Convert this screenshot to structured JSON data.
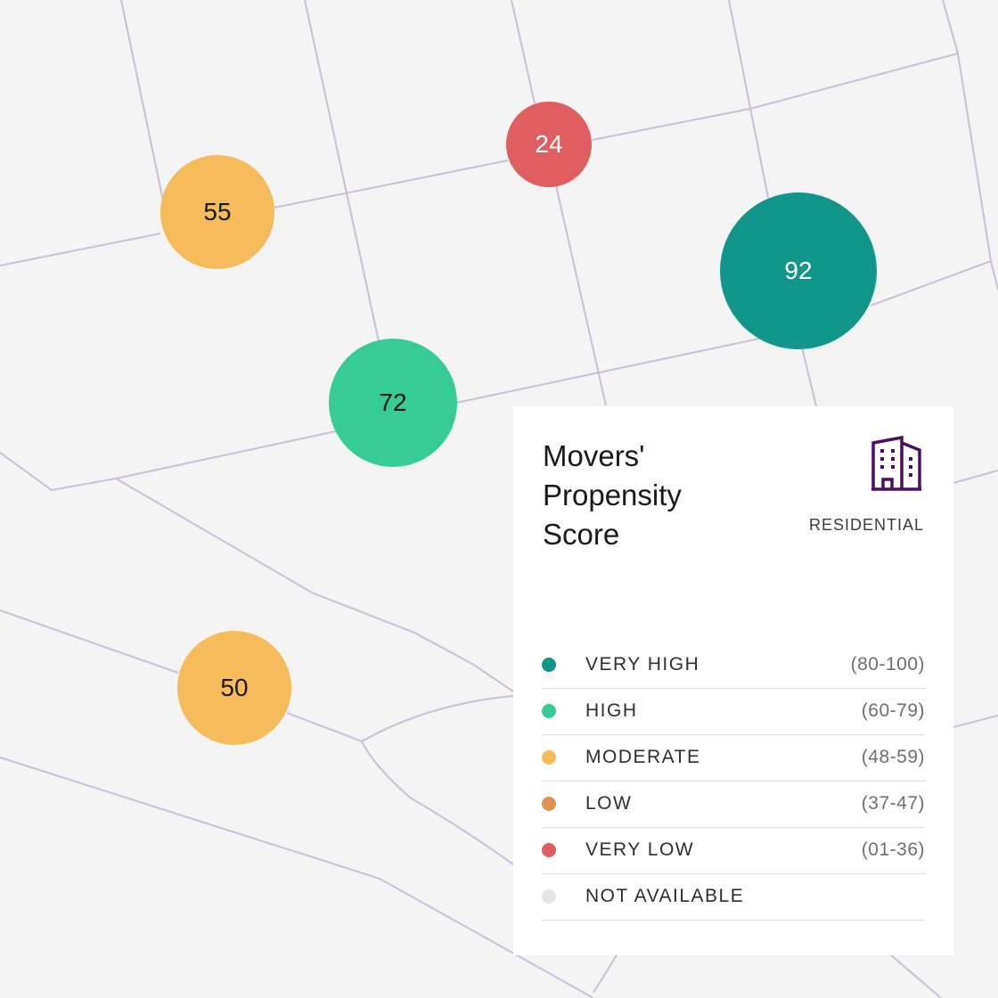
{
  "map": {
    "background": "#f4f4f5",
    "road_color": "#cbbfd6",
    "markers": [
      {
        "score": "55",
        "band": "moderate",
        "color": "#f6bb5a",
        "text_color": "#1a1a1a"
      },
      {
        "score": "24",
        "band": "very_low",
        "color": "#e05e5f",
        "text_color": "#ffffff"
      },
      {
        "score": "92",
        "band": "very_high",
        "color": "#10968a",
        "text_color": "#ffffff"
      },
      {
        "score": "72",
        "band": "high",
        "color": "#36cc96",
        "text_color": "#1a1a1a"
      },
      {
        "score": "50",
        "band": "moderate",
        "color": "#f6bb5a",
        "text_color": "#1a1a1a"
      }
    ]
  },
  "panel": {
    "title_lines": [
      "Movers'",
      "Propensity",
      "Score"
    ],
    "icon": "building-icon",
    "icon_color": "#4a0f63",
    "category": "RESIDENTIAL",
    "legend": [
      {
        "label": "VERY HIGH",
        "range": "(80-100)",
        "color": "#10968a"
      },
      {
        "label": "HIGH",
        "range": "(60-79)",
        "color": "#36cc96"
      },
      {
        "label": "MODERATE",
        "range": "(48-59)",
        "color": "#f6bb5a"
      },
      {
        "label": "LOW",
        "range": "(37-47)",
        "color": "#e0914a"
      },
      {
        "label": "VERY LOW",
        "range": "(01-36)",
        "color": "#e05e5f"
      },
      {
        "label": "NOT AVAILABLE",
        "range": "",
        "color": "#e6e6e6"
      }
    ]
  }
}
